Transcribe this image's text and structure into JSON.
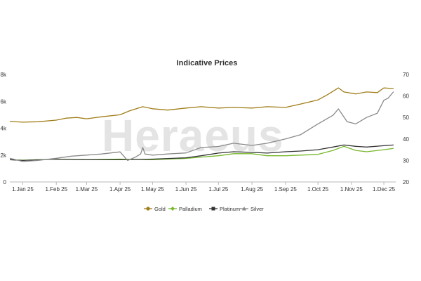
{
  "chart_data": {
    "type": "line",
    "title": "Indicative Prices",
    "watermark": "Heraeus",
    "x_categories": [
      "1.Jan 25",
      "1.Feb 25",
      "1.Mar 25",
      "1.Apr 25",
      "1.May 25",
      "1.Jun 25",
      "1.Jul 25",
      "1.Aug 25",
      "1.Sep 25",
      "1.Oct 25",
      "1.Nov 25",
      "1.Dec 25"
    ],
    "x_range": [
      "2024-12-20",
      "2025-12-12"
    ],
    "y_left": {
      "ticks": [
        "0",
        "2k",
        "4k",
        "6k",
        "8k"
      ],
      "range": [
        0,
        8000
      ]
    },
    "y_right": {
      "ticks": [
        "20",
        "30",
        "40",
        "50",
        "60",
        "70"
      ],
      "range": [
        20,
        70
      ]
    },
    "grid": false,
    "legend_position": "bottom",
    "series": [
      {
        "name": "Gold",
        "axis": "left",
        "color": "#a07d18",
        "marker": "circle",
        "points": [
          [
            "2024-12-20",
            4500
          ],
          [
            "2025-01-01",
            4450
          ],
          [
            "2025-01-15",
            4480
          ],
          [
            "2025-02-01",
            4600
          ],
          [
            "2025-02-10",
            4750
          ],
          [
            "2025-02-20",
            4800
          ],
          [
            "2025-03-01",
            4700
          ],
          [
            "2025-03-15",
            4850
          ],
          [
            "2025-04-01",
            5000
          ],
          [
            "2025-04-10",
            5300
          ],
          [
            "2025-04-22",
            5600
          ],
          [
            "2025-05-01",
            5450
          ],
          [
            "2025-05-15",
            5350
          ],
          [
            "2025-06-01",
            5500
          ],
          [
            "2025-06-15",
            5600
          ],
          [
            "2025-07-01",
            5500
          ],
          [
            "2025-07-15",
            5550
          ],
          [
            "2025-08-01",
            5500
          ],
          [
            "2025-08-15",
            5600
          ],
          [
            "2025-09-01",
            5550
          ],
          [
            "2025-09-15",
            5800
          ],
          [
            "2025-10-01",
            6100
          ],
          [
            "2025-10-10",
            6500
          ],
          [
            "2025-10-20",
            7000
          ],
          [
            "2025-10-25",
            6700
          ],
          [
            "2025-11-05",
            6550
          ],
          [
            "2025-11-15",
            6700
          ],
          [
            "2025-11-25",
            6650
          ],
          [
            "2025-12-01",
            7000
          ],
          [
            "2025-12-10",
            6950
          ]
        ]
      },
      {
        "name": "Palladium",
        "axis": "left",
        "color": "#77b82b",
        "marker": "diamond",
        "points": [
          [
            "2024-12-20",
            1650
          ],
          [
            "2025-01-01",
            1620
          ],
          [
            "2025-01-15",
            1650
          ],
          [
            "2025-02-01",
            1700
          ],
          [
            "2025-03-01",
            1650
          ],
          [
            "2025-04-01",
            1700
          ],
          [
            "2025-05-01",
            1650
          ],
          [
            "2025-06-01",
            1750
          ],
          [
            "2025-06-15",
            1850
          ],
          [
            "2025-07-01",
            1950
          ],
          [
            "2025-07-15",
            2100
          ],
          [
            "2025-08-01",
            2100
          ],
          [
            "2025-08-15",
            1950
          ],
          [
            "2025-09-01",
            1950
          ],
          [
            "2025-09-15",
            2000
          ],
          [
            "2025-10-01",
            2050
          ],
          [
            "2025-10-15",
            2350
          ],
          [
            "2025-10-25",
            2650
          ],
          [
            "2025-11-05",
            2350
          ],
          [
            "2025-11-15",
            2250
          ],
          [
            "2025-12-01",
            2400
          ],
          [
            "2025-12-10",
            2500
          ]
        ]
      },
      {
        "name": "Platinum",
        "axis": "left",
        "color": "#333333",
        "marker": "square",
        "points": [
          [
            "2024-12-20",
            1650
          ],
          [
            "2025-01-01",
            1600
          ],
          [
            "2025-02-01",
            1700
          ],
          [
            "2025-03-01",
            1650
          ],
          [
            "2025-04-01",
            1650
          ],
          [
            "2025-05-01",
            1700
          ],
          [
            "2025-06-01",
            1800
          ],
          [
            "2025-06-15",
            1950
          ],
          [
            "2025-07-01",
            2150
          ],
          [
            "2025-07-15",
            2250
          ],
          [
            "2025-08-01",
            2200
          ],
          [
            "2025-08-15",
            2150
          ],
          [
            "2025-09-01",
            2250
          ],
          [
            "2025-09-15",
            2300
          ],
          [
            "2025-10-01",
            2400
          ],
          [
            "2025-10-15",
            2600
          ],
          [
            "2025-10-25",
            2750
          ],
          [
            "2025-11-05",
            2650
          ],
          [
            "2025-11-15",
            2600
          ],
          [
            "2025-12-01",
            2700
          ],
          [
            "2025-12-10",
            2750
          ]
        ]
      },
      {
        "name": "Silver",
        "axis": "right",
        "color": "#8a8a8a",
        "marker": "triangle",
        "points": [
          [
            "2024-12-20",
            31
          ],
          [
            "2025-01-01",
            29.5
          ],
          [
            "2025-01-15",
            30
          ],
          [
            "2025-02-01",
            31
          ],
          [
            "2025-02-15",
            32
          ],
          [
            "2025-03-01",
            32.5
          ],
          [
            "2025-03-15",
            33
          ],
          [
            "2025-04-01",
            34
          ],
          [
            "2025-04-08",
            30
          ],
          [
            "2025-04-15",
            31.5
          ],
          [
            "2025-04-20",
            33
          ],
          [
            "2025-04-22",
            36
          ],
          [
            "2025-04-24",
            33
          ],
          [
            "2025-05-01",
            32.5
          ],
          [
            "2025-05-15",
            33
          ],
          [
            "2025-06-01",
            33.5
          ],
          [
            "2025-06-15",
            36
          ],
          [
            "2025-07-01",
            36.5
          ],
          [
            "2025-07-15",
            38
          ],
          [
            "2025-08-01",
            37
          ],
          [
            "2025-08-15",
            38
          ],
          [
            "2025-09-01",
            40
          ],
          [
            "2025-09-15",
            42
          ],
          [
            "2025-10-01",
            47
          ],
          [
            "2025-10-15",
            51
          ],
          [
            "2025-10-20",
            54
          ],
          [
            "2025-10-28",
            48
          ],
          [
            "2025-11-05",
            47
          ],
          [
            "2025-11-15",
            50
          ],
          [
            "2025-11-25",
            52
          ],
          [
            "2025-12-01",
            58
          ],
          [
            "2025-12-05",
            59
          ],
          [
            "2025-12-10",
            62
          ]
        ]
      }
    ]
  }
}
